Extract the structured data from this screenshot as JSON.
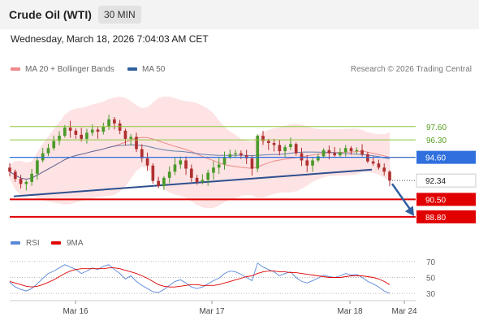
{
  "header": {
    "instrument": "Crude Oil (WTI)",
    "timeframe": "30 MIN"
  },
  "timestamp": "Wednesday, March 18, 2026 7:04:03 AM CET",
  "legend": {
    "ma20": {
      "label": "MA 20 + Bollinger Bands",
      "color": "#f08a8a"
    },
    "ma50": {
      "label": "MA 50",
      "color": "#2f5f9e"
    }
  },
  "credit": "Research © 2026 Trading Central",
  "chart_data": {
    "type": "candlestick",
    "price_axis": {
      "ylim": [
        87.6,
        99.8
      ]
    },
    "x_ticks": [
      "Mar 16",
      "Mar 17",
      "Mar 18",
      "Mar 24"
    ],
    "levels": [
      {
        "value": 97.6,
        "label": "97.60",
        "kind": "resistance",
        "color": "#8dc63f"
      },
      {
        "value": 96.3,
        "label": "96.30",
        "kind": "resistance",
        "color": "#8dc63f"
      },
      {
        "value": 94.6,
        "label": "94.60",
        "kind": "pivot",
        "color": "#2f6fde"
      },
      {
        "value": 90.5,
        "label": "90.50",
        "kind": "support",
        "color": "#e00000"
      },
      {
        "value": 88.8,
        "label": "88.80",
        "kind": "support",
        "color": "#e00000"
      }
    ],
    "current_price": {
      "value": 92.34,
      "label": "92.34"
    },
    "trendline": {
      "x": [
        0,
        1
      ],
      "y": [
        90.8,
        93.4
      ]
    },
    "forecast_arrow": {
      "from": 92.34,
      "to": 88.8
    },
    "closes": [
      93.2,
      92.5,
      92.0,
      92.2,
      93.0,
      94.3,
      95.0,
      95.5,
      96.2,
      96.7,
      97.5,
      97.2,
      96.8,
      96.4,
      97.0,
      97.3,
      97.1,
      97.6,
      98.3,
      97.9,
      97.2,
      96.4,
      96.6,
      95.4,
      94.5,
      93.8,
      92.3,
      91.8,
      92.6,
      93.2,
      93.9,
      94.3,
      93.5,
      92.6,
      92.2,
      92.4,
      93.1,
      93.6,
      93.9,
      94.6,
      94.9,
      95.0,
      94.8,
      94.5,
      93.5,
      96.7,
      96.2,
      96.0,
      95.8,
      95.2,
      95.6,
      95.9,
      95.0,
      94.3,
      93.8,
      94.3,
      94.7,
      95.3,
      95.0,
      94.8,
      95.1,
      95.5,
      95.2,
      95.3,
      94.9,
      94.2,
      94.0,
      93.6,
      93.2,
      92.34
    ],
    "indicator": {
      "name": "RSI",
      "ylim": [
        26,
        76
      ],
      "ticks": [
        70,
        50,
        30
      ],
      "legend": [
        {
          "label": "RSI",
          "color": "#5b87d9"
        },
        {
          "label": "9MA",
          "color": "#e00000"
        }
      ],
      "rsi": [
        44,
        38,
        35,
        33,
        36,
        42,
        49,
        55,
        58,
        62,
        66,
        63,
        60,
        55,
        58,
        62,
        60,
        64,
        66,
        60,
        55,
        48,
        52,
        45,
        40,
        36,
        32,
        31,
        35,
        40,
        45,
        47,
        43,
        38,
        36,
        38,
        42,
        46,
        49,
        55,
        58,
        57,
        54,
        50,
        46,
        68,
        63,
        60,
        57,
        52,
        55,
        57,
        50,
        45,
        43,
        46,
        49,
        53,
        51,
        50,
        52,
        55,
        53,
        54,
        50,
        45,
        42,
        38,
        33,
        30
      ],
      "ma9": [
        45,
        43,
        41,
        39,
        38,
        39,
        41,
        44,
        47,
        51,
        55,
        58,
        60,
        61,
        61,
        61,
        61,
        61,
        62,
        62,
        61,
        59,
        57,
        55,
        52,
        49,
        45,
        41,
        39,
        38,
        38,
        39,
        40,
        41,
        41,
        40,
        40,
        40,
        41,
        43,
        45,
        47,
        49,
        51,
        52,
        55,
        57,
        58,
        58,
        57,
        57,
        56,
        56,
        55,
        54,
        53,
        52,
        51,
        50,
        50,
        50,
        51,
        52,
        52,
        52,
        51,
        50,
        48,
        45,
        41
      ]
    }
  }
}
